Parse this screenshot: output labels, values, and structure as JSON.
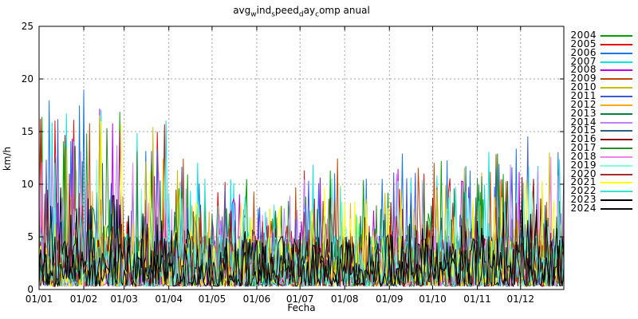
{
  "title": {
    "raw": "avg_wind_speed_day_comp anual",
    "parts": [
      {
        "text": "avg"
      },
      {
        "sub": "w"
      },
      {
        "text": "ind"
      },
      {
        "sub": "s"
      },
      {
        "text": "peed"
      },
      {
        "sub": "d"
      },
      {
        "text": "ay"
      },
      {
        "sub": "c"
      },
      {
        "text": "omp"
      },
      {
        "text": " anual"
      }
    ]
  },
  "axes": {
    "xlabel": "Fecha",
    "ylabel": "km/h"
  },
  "chart_data": {
    "type": "line",
    "title": "avg_wind_speed_day_comp anual",
    "xlabel": "Fecha",
    "ylabel": "km/h",
    "ylim": [
      0,
      25
    ],
    "yticks": [
      0,
      5,
      10,
      15,
      20,
      25
    ],
    "xticks": [
      "01/01",
      "01/02",
      "01/03",
      "01/04",
      "01/05",
      "01/06",
      "01/07",
      "01/08",
      "01/09",
      "01/10",
      "01/11",
      "01/12"
    ],
    "x_month_start_day": [
      0,
      31,
      59,
      90,
      120,
      151,
      181,
      212,
      243,
      273,
      304,
      334
    ],
    "x_days": 365,
    "grid": true,
    "grid_color": "#a0a0a0",
    "legend_position": "right-outside",
    "units": "km/h",
    "monthly_max_envelope": [
      18,
      20,
      16.5,
      12.5,
      10.5,
      10,
      12.5,
      11,
      13,
      12.5,
      13.5,
      16
    ],
    "typical_daily_range": [
      0.3,
      6
    ],
    "series": [
      {
        "name": "2004",
        "color": "#00a000",
        "seed": 2004,
        "scale": 1.0
      },
      {
        "name": "2005",
        "color": "#e60a0a",
        "seed": 2005,
        "scale": 1.0
      },
      {
        "name": "2006",
        "color": "#1478e6",
        "seed": 2006,
        "scale": 1.0
      },
      {
        "name": "2007",
        "color": "#00e6e6",
        "seed": 2007,
        "scale": 1.0
      },
      {
        "name": "2008",
        "color": "#be00e6",
        "seed": 2008,
        "scale": 0.9
      },
      {
        "name": "2009",
        "color": "#be4600",
        "seed": 2009,
        "scale": 1.0
      },
      {
        "name": "2010",
        "color": "#c8be00",
        "seed": 2010,
        "scale": 0.95
      },
      {
        "name": "2011",
        "color": "#3c5adc",
        "seed": 2011,
        "scale": 0.95
      },
      {
        "name": "2012",
        "color": "#faaa14",
        "seed": 2012,
        "scale": 0.85
      },
      {
        "name": "2013",
        "color": "#00823c",
        "seed": 2013,
        "scale": 0.8
      },
      {
        "name": "2014",
        "color": "#be82ff",
        "seed": 2014,
        "scale": 0.9
      },
      {
        "name": "2015",
        "color": "#2d5f82",
        "seed": 2015,
        "scale": 0.7
      },
      {
        "name": "2016",
        "color": "#8c0000",
        "seed": 2016,
        "scale": 0.75
      },
      {
        "name": "2017",
        "color": "#288c28",
        "seed": 2017,
        "scale": 0.8
      },
      {
        "name": "2018",
        "color": "#f082f0",
        "seed": 2018,
        "scale": 0.8
      },
      {
        "name": "2019",
        "color": "#82ffd2",
        "seed": 2019,
        "scale": 0.8
      },
      {
        "name": "2020",
        "color": "#a52d2d",
        "seed": 2020,
        "scale": 0.7
      },
      {
        "name": "2021",
        "color": "#ffff00",
        "seed": 2021,
        "scale": 0.85
      },
      {
        "name": "2022",
        "color": "#3ce1d2",
        "seed": 2022,
        "scale": 0.85
      },
      {
        "name": "2023",
        "color": "#000000",
        "seed": 2023,
        "scale": 0.55
      },
      {
        "name": "2024",
        "color": "#0a0a0a",
        "seed": 2024,
        "scale": 0.5
      }
    ]
  },
  "layout_colors": {
    "background": "#ffffff",
    "border": "#000000",
    "grid": "#a0a0a0",
    "text": "#000000"
  }
}
